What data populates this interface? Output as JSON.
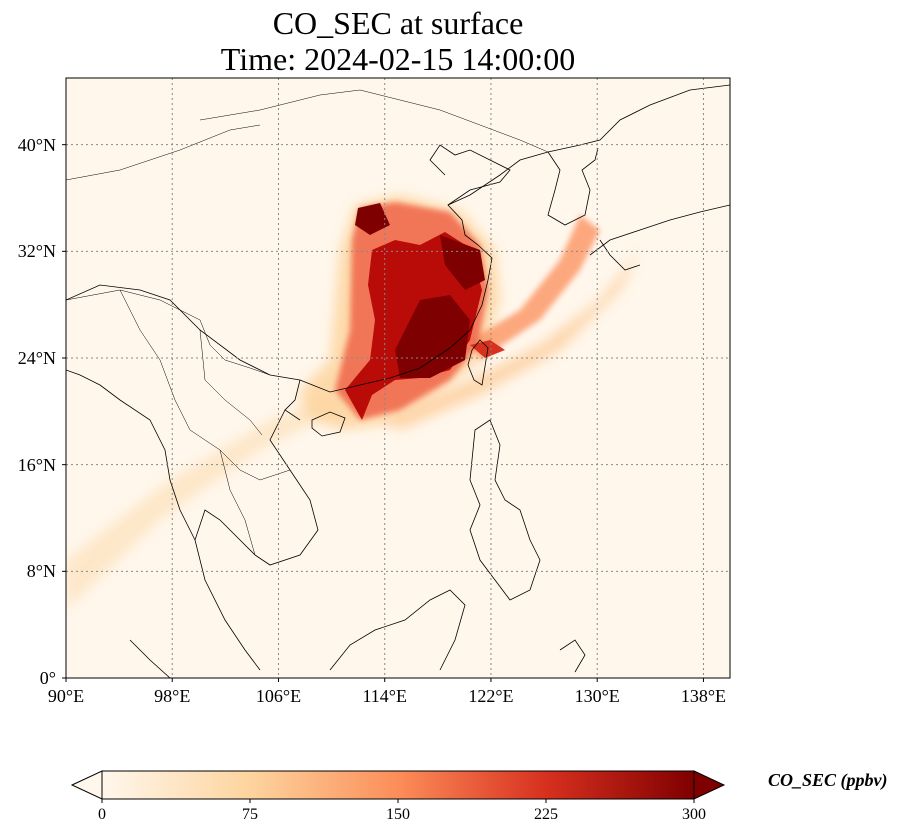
{
  "figure": {
    "title_line1": "CO_SEC at surface",
    "title_line2": "Time: 2024-02-15 14:00:00"
  },
  "map": {
    "lon_range": [
      90,
      140
    ],
    "lat_range": [
      0,
      45
    ],
    "x_ticks": [
      "90°E",
      "98°E",
      "106°E",
      "114°E",
      "122°E",
      "130°E",
      "138°E"
    ],
    "x_tick_values": [
      90,
      98,
      106,
      114,
      122,
      130,
      138
    ],
    "y_ticks": [
      "0°",
      "8°N",
      "16°N",
      "24°N",
      "32°N",
      "40°N"
    ],
    "y_tick_values": [
      0,
      8,
      16,
      24,
      32,
      40
    ],
    "gridlines": "dotted",
    "field_cmap": "OrRd",
    "coast_color": "#000000"
  },
  "colorbar": {
    "label": "CO_SEC (ppbv)",
    "ticks": [
      "0",
      "75",
      "150",
      "225",
      "300"
    ],
    "tick_values": [
      0,
      75,
      150,
      225,
      300
    ],
    "range": [
      0,
      300
    ],
    "extend": "both",
    "colors": [
      "#fff7ec",
      "#fdd49e",
      "#fc8d59",
      "#d7301f",
      "#7f0000"
    ]
  }
}
